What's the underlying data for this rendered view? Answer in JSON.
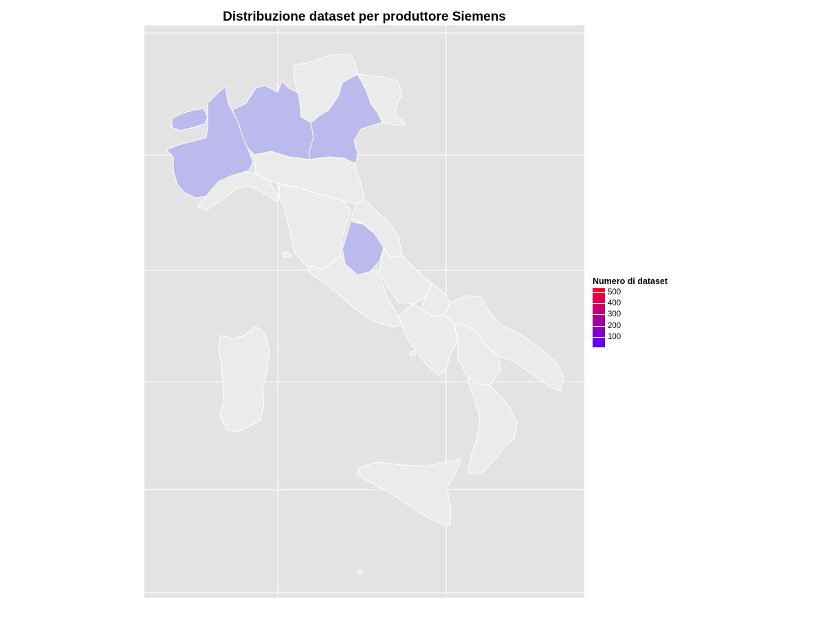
{
  "title": "Distribuzione dataset per produttore Siemens",
  "legend": {
    "title": "Numero di dataset",
    "ticks": [
      "500",
      "400",
      "300",
      "200",
      "100"
    ],
    "gradient": {
      "low": "#5a00ff",
      "high": "#ff0022"
    }
  },
  "map": {
    "background": "#e3e3e3",
    "grid_color": "#ffffff",
    "region_fill_default": "#ebebeb",
    "region_fill_highlight": "#bcb9ec",
    "highlighted_regions": [
      "Valle d'Aosta",
      "Piemonte",
      "Lombardia",
      "Veneto",
      "Umbria"
    ]
  }
}
